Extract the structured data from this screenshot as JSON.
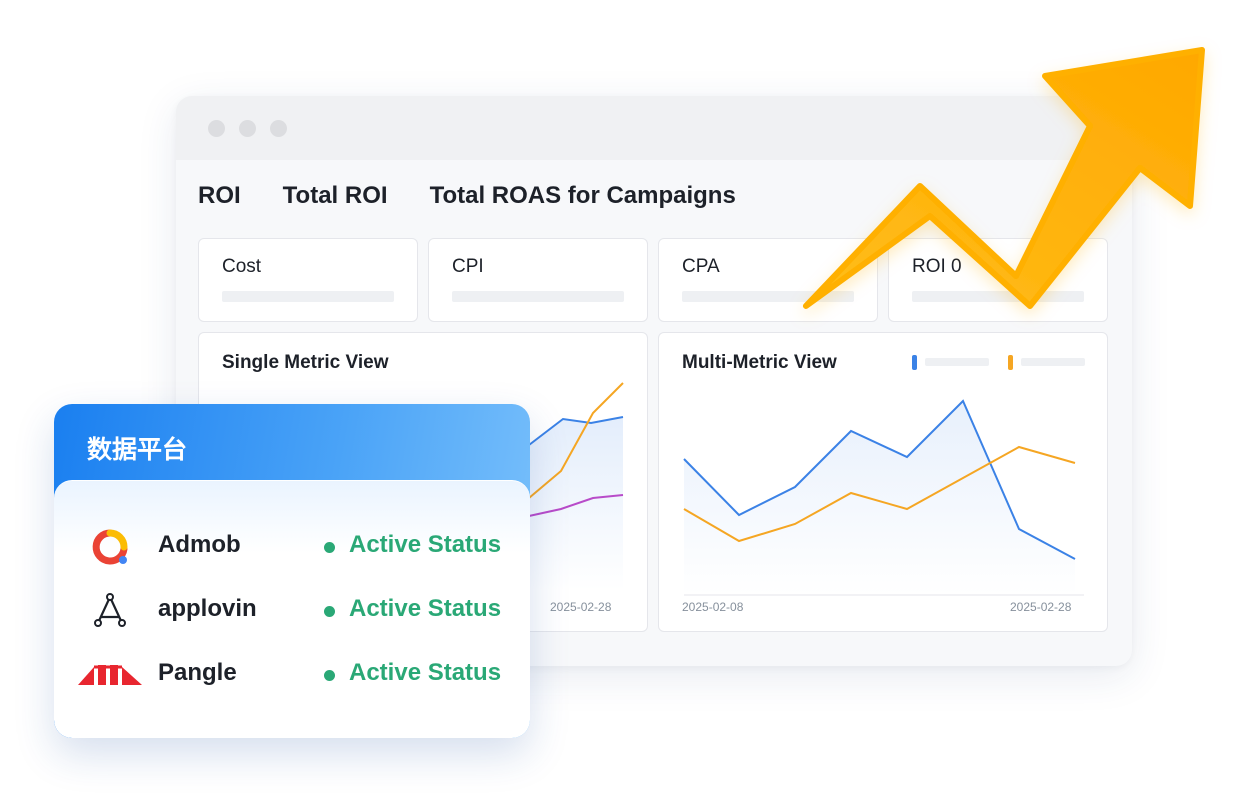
{
  "window": {
    "tabs": [
      "ROI",
      "Total ROI",
      "Total ROAS for Campaigns"
    ]
  },
  "metrics": [
    "Cost",
    "CPI",
    "CPA",
    "ROI 0"
  ],
  "single_chart": {
    "title": "Single Metric View",
    "date_end": "2025-02-28"
  },
  "multi_chart": {
    "title": "Multi-Metric View",
    "date_start": "2025-02-08",
    "date_end": "2025-02-28",
    "legend_colors": [
      "#3b82e6",
      "#f5a623"
    ]
  },
  "platform": {
    "title": "数据平台",
    "items": [
      {
        "name": "Admob",
        "status": "Active Status",
        "icon": "admob-logo-icon"
      },
      {
        "name": "applovin",
        "status": "Active Status",
        "icon": "applovin-logo-icon"
      },
      {
        "name": "Pangle",
        "status": "Active Status",
        "icon": "pangle-logo-icon"
      }
    ],
    "status_color": "#2aa876"
  },
  "colors": {
    "accent_blue": "#3b82e6",
    "accent_orange": "#f5a623",
    "accent_purple": "#b84bc9",
    "arrow": "#ffb000"
  }
}
